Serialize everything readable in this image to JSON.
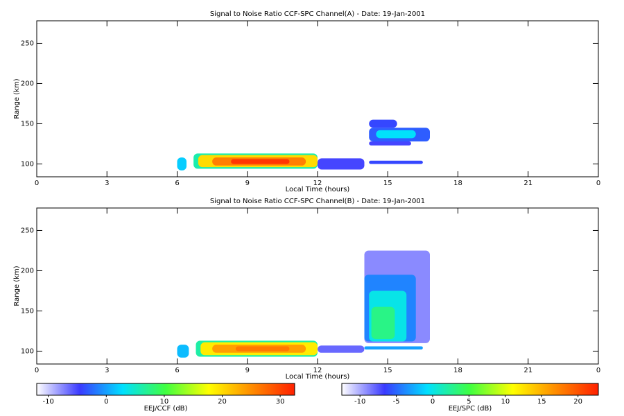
{
  "chart_data": [
    {
      "type": "heatmap",
      "title": "Signal to Noise Ratio CCF-SPC Channel(A) - Date: 19-Jan-2001",
      "xlabel": "Local Time (hours)",
      "ylabel": "Range (km)",
      "xlim": [
        0,
        24
      ],
      "ylim": [
        84,
        278
      ],
      "xticks": [
        0,
        3,
        6,
        9,
        12,
        15,
        18,
        21,
        {
          "value": 24,
          "label": "0"
        }
      ],
      "yticks": [
        100,
        150,
        200,
        250
      ],
      "colormap": [
        "#ffffff",
        "#3a3aff",
        "#00e0ff",
        "#40ff40",
        "#ffff00",
        "#ff8c00",
        "#ff2000"
      ],
      "colorbar": {
        "label": "EEJ/CCF (dB)",
        "clim": [
          -12,
          32.5
        ],
        "ticks": [
          -10,
          0,
          10,
          20,
          30
        ]
      },
      "cells": [
        {
          "x": [
            6.0,
            6.4
          ],
          "y": [
            92,
            108
          ],
          "value": 2
        },
        {
          "x": [
            6.7,
            12.0
          ],
          "y": [
            94,
            113
          ],
          "value": 6
        },
        {
          "x": [
            6.9,
            12.0
          ],
          "y": [
            96,
            111
          ],
          "value": 20
        },
        {
          "x": [
            7.5,
            11.5
          ],
          "y": [
            98,
            108
          ],
          "value": 26
        },
        {
          "x": [
            8.3,
            10.8
          ],
          "y": [
            100,
            106
          ],
          "value": 31
        },
        {
          "x": [
            12.0,
            14.0
          ],
          "y": [
            93,
            107
          ],
          "value": -5
        },
        {
          "x": [
            14.2,
            16.5
          ],
          "y": [
            100,
            104
          ],
          "value": -4
        },
        {
          "x": [
            14.2,
            16.0
          ],
          "y": [
            123,
            128
          ],
          "value": -5
        },
        {
          "x": [
            14.2,
            15.4
          ],
          "y": [
            145,
            155
          ],
          "value": -4
        },
        {
          "x": [
            14.2,
            16.8
          ],
          "y": [
            128,
            145
          ],
          "value": -3
        },
        {
          "x": [
            14.5,
            16.2
          ],
          "y": [
            132,
            142
          ],
          "value": 3
        }
      ]
    },
    {
      "type": "heatmap",
      "title": "Signal to Noise Ratio CCF-SPC Channel(B) - Date: 19-Jan-2001",
      "xlabel": "Local Time (hours)",
      "ylabel": "Range (km)",
      "xlim": [
        0,
        24
      ],
      "ylim": [
        84,
        278
      ],
      "xticks": [
        0,
        3,
        6,
        9,
        12,
        15,
        18,
        21,
        {
          "value": 24,
          "label": "0"
        }
      ],
      "yticks": [
        100,
        150,
        200,
        250
      ],
      "colormap": [
        "#ffffff",
        "#3a3aff",
        "#00e0ff",
        "#40ff40",
        "#ffff00",
        "#ff8c00",
        "#ff2000"
      ],
      "colorbar": {
        "label": "EEJ/SPC (dB)",
        "clim": [
          -12.5,
          22.8
        ],
        "ticks": [
          -10,
          -5,
          0,
          5,
          10,
          15,
          20
        ]
      },
      "cells": [
        {
          "x": [
            6.0,
            6.5
          ],
          "y": [
            92,
            108
          ],
          "value": -2
        },
        {
          "x": [
            6.8,
            12.0
          ],
          "y": [
            93,
            113
          ],
          "value": 2
        },
        {
          "x": [
            7.0,
            12.0
          ],
          "y": [
            95,
            111
          ],
          "value": 12
        },
        {
          "x": [
            7.5,
            11.5
          ],
          "y": [
            98,
            108
          ],
          "value": 16
        },
        {
          "x": [
            8.5,
            10.8
          ],
          "y": [
            100,
            106
          ],
          "value": 18
        },
        {
          "x": [
            12.0,
            14.0
          ],
          "y": [
            98,
            107
          ],
          "value": -8
        },
        {
          "x": [
            14.0,
            16.8
          ],
          "y": [
            110,
            225
          ],
          "value": -9
        },
        {
          "x": [
            14.0,
            16.2
          ],
          "y": [
            112,
            195
          ],
          "value": -4
        },
        {
          "x": [
            14.2,
            15.8
          ],
          "y": [
            112,
            175
          ],
          "value": 0
        },
        {
          "x": [
            14.3,
            15.3
          ],
          "y": [
            115,
            155
          ],
          "value": 3
        },
        {
          "x": [
            14.0,
            16.5
          ],
          "y": [
            102,
            106
          ],
          "value": -3
        }
      ]
    }
  ]
}
